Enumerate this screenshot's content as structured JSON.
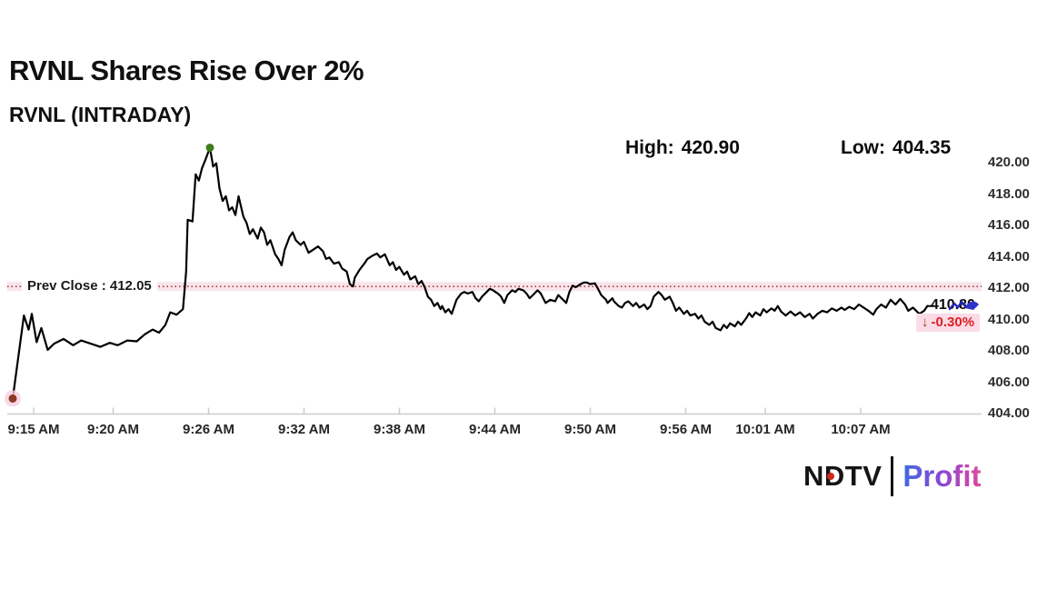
{
  "header": {
    "title": "RVNL Shares Rise Over 2%",
    "subtitle": "RVNL (INTRADAY)"
  },
  "chart_data": {
    "type": "line",
    "title": "RVNL (INTRADAY)",
    "legend": [],
    "grid": "off",
    "x_axis": {
      "tick_labels": [
        "9:15 AM",
        "9:20 AM",
        "9:26 AM",
        "9:32 AM",
        "9:38 AM",
        "9:44 AM",
        "9:50 AM",
        "9:56 AM",
        "10:01 AM",
        "10:07 AM"
      ],
      "tick_minutes": [
        0,
        5,
        11,
        17,
        23,
        29,
        35,
        41,
        46,
        52
      ]
    },
    "y_axis": {
      "tick_values": [
        420,
        418,
        416,
        414,
        412,
        410,
        408,
        406,
        404
      ],
      "tick_labels": [
        "420.00",
        "418.00",
        "416.00",
        "414.00",
        "412.00",
        "410.00",
        "408.00",
        "406.00",
        "404.00"
      ],
      "range": [
        403.7,
        421.3
      ]
    },
    "prev_close": {
      "label": "Prev Close : 412.05",
      "value": 412.05
    },
    "high": {
      "label": "High:",
      "value": "420.90",
      "marker_minute": 12.4
    },
    "low": {
      "label": "Low:",
      "value": "404.35"
    },
    "last": {
      "price": "410.80",
      "arrow": "↓",
      "change": "-0.30%",
      "direction": "down"
    },
    "series": [
      {
        "name": "RVNL",
        "points": [
          [
            0,
            404.9
          ],
          [
            0.7,
            410.2
          ],
          [
            1.0,
            409.3
          ],
          [
            1.2,
            410.3
          ],
          [
            1.5,
            408.5
          ],
          [
            1.8,
            409.4
          ],
          [
            2.2,
            408.0
          ],
          [
            2.6,
            408.4
          ],
          [
            3.2,
            408.7
          ],
          [
            3.8,
            408.3
          ],
          [
            4.3,
            408.6
          ],
          [
            4.9,
            408.4
          ],
          [
            5.5,
            408.2
          ],
          [
            6.1,
            408.45
          ],
          [
            6.6,
            408.3
          ],
          [
            7.2,
            408.6
          ],
          [
            7.8,
            408.55
          ],
          [
            8.3,
            409.0
          ],
          [
            8.8,
            409.3
          ],
          [
            9.2,
            409.1
          ],
          [
            9.6,
            409.6
          ],
          [
            9.9,
            410.4
          ],
          [
            10.3,
            410.25
          ],
          [
            10.7,
            410.6
          ],
          [
            10.9,
            413.0
          ],
          [
            11.0,
            416.3
          ],
          [
            11.3,
            416.2
          ],
          [
            11.5,
            419.2
          ],
          [
            11.7,
            418.8
          ],
          [
            11.9,
            419.6
          ],
          [
            12.1,
            420.1
          ],
          [
            12.4,
            420.9
          ],
          [
            12.6,
            419.7
          ],
          [
            12.8,
            419.9
          ],
          [
            13.0,
            418.3
          ],
          [
            13.2,
            417.5
          ],
          [
            13.4,
            417.8
          ],
          [
            13.6,
            416.9
          ],
          [
            13.8,
            417.1
          ],
          [
            14.0,
            416.6
          ],
          [
            14.2,
            417.8
          ],
          [
            14.5,
            416.5
          ],
          [
            14.7,
            416.1
          ],
          [
            14.9,
            415.4
          ],
          [
            15.1,
            415.7
          ],
          [
            15.4,
            415.1
          ],
          [
            15.6,
            415.8
          ],
          [
            15.8,
            415.5
          ],
          [
            16.0,
            414.7
          ],
          [
            16.2,
            415.0
          ],
          [
            16.5,
            414.1
          ],
          [
            16.7,
            413.8
          ],
          [
            16.9,
            413.4
          ],
          [
            17.1,
            414.4
          ],
          [
            17.4,
            415.2
          ],
          [
            17.6,
            415.5
          ],
          [
            17.8,
            415.0
          ],
          [
            18.1,
            414.7
          ],
          [
            18.3,
            414.9
          ],
          [
            18.6,
            414.2
          ],
          [
            18.9,
            414.4
          ],
          [
            19.2,
            414.6
          ],
          [
            19.5,
            414.3
          ],
          [
            19.7,
            413.8
          ],
          [
            19.9,
            413.9
          ],
          [
            20.2,
            413.5
          ],
          [
            20.5,
            413.6
          ],
          [
            20.7,
            413.2
          ],
          [
            21.0,
            413.0
          ],
          [
            21.2,
            412.2
          ],
          [
            21.4,
            412.05
          ],
          [
            21.5,
            412.6
          ],
          [
            21.8,
            413.1
          ],
          [
            22.1,
            413.5
          ],
          [
            22.3,
            413.8
          ],
          [
            22.6,
            414.0
          ],
          [
            22.9,
            414.15
          ],
          [
            23.1,
            413.9
          ],
          [
            23.4,
            414.1
          ],
          [
            23.7,
            413.4
          ],
          [
            23.9,
            413.6
          ],
          [
            24.1,
            413.1
          ],
          [
            24.3,
            413.3
          ],
          [
            24.6,
            412.8
          ],
          [
            24.8,
            413.0
          ],
          [
            25.0,
            412.5
          ],
          [
            25.3,
            412.7
          ],
          [
            25.5,
            412.2
          ],
          [
            25.7,
            412.4
          ],
          [
            25.9,
            412.0
          ],
          [
            26.1,
            411.4
          ],
          [
            26.3,
            411.2
          ],
          [
            26.5,
            410.8
          ],
          [
            26.7,
            411.0
          ],
          [
            26.9,
            410.6
          ],
          [
            27.0,
            410.8
          ],
          [
            27.2,
            410.4
          ],
          [
            27.4,
            410.6
          ],
          [
            27.6,
            410.3
          ],
          [
            27.8,
            410.9
          ],
          [
            27.9,
            411.2
          ],
          [
            28.2,
            411.6
          ],
          [
            28.4,
            411.7
          ],
          [
            28.6,
            411.6
          ],
          [
            28.9,
            411.7
          ],
          [
            29.1,
            411.3
          ],
          [
            29.3,
            411.1
          ],
          [
            29.5,
            411.4
          ],
          [
            29.8,
            411.7
          ],
          [
            30.0,
            411.9
          ],
          [
            30.2,
            411.8
          ],
          [
            30.5,
            411.6
          ],
          [
            30.7,
            411.4
          ],
          [
            30.9,
            411.0
          ],
          [
            31.1,
            411.5
          ],
          [
            31.4,
            411.8
          ],
          [
            31.6,
            411.7
          ],
          [
            31.8,
            411.9
          ],
          [
            32.1,
            411.8
          ],
          [
            32.3,
            411.6
          ],
          [
            32.5,
            411.3
          ],
          [
            32.7,
            411.5
          ],
          [
            33.0,
            411.8
          ],
          [
            33.2,
            411.6
          ],
          [
            33.5,
            411.0
          ],
          [
            33.8,
            411.2
          ],
          [
            34.1,
            411.1
          ],
          [
            34.3,
            411.5
          ],
          [
            34.6,
            411.2
          ],
          [
            34.8,
            411.0
          ],
          [
            35.0,
            411.7
          ],
          [
            35.2,
            412.1
          ],
          [
            35.4,
            412.0
          ],
          [
            35.7,
            412.2
          ],
          [
            35.9,
            412.3
          ],
          [
            36.1,
            412.3
          ],
          [
            36.3,
            412.2
          ],
          [
            36.6,
            412.25
          ],
          [
            36.8,
            411.9
          ],
          [
            37.0,
            411.5
          ],
          [
            37.3,
            411.2
          ],
          [
            37.4,
            411.0
          ],
          [
            37.7,
            411.3
          ],
          [
            37.8,
            411.1
          ],
          [
            38.1,
            410.8
          ],
          [
            38.3,
            410.7
          ],
          [
            38.5,
            411.0
          ],
          [
            38.7,
            411.1
          ],
          [
            39.0,
            410.8
          ],
          [
            39.2,
            411.0
          ],
          [
            39.4,
            410.7
          ],
          [
            39.7,
            410.9
          ],
          [
            39.9,
            410.6
          ],
          [
            40.1,
            410.8
          ],
          [
            40.3,
            411.4
          ],
          [
            40.6,
            411.7
          ],
          [
            40.8,
            411.5
          ],
          [
            41.0,
            411.2
          ],
          [
            41.3,
            411.4
          ],
          [
            41.5,
            411.0
          ],
          [
            41.7,
            410.5
          ],
          [
            41.9,
            410.7
          ],
          [
            42.2,
            410.3
          ],
          [
            42.4,
            410.5
          ],
          [
            42.6,
            410.2
          ],
          [
            42.9,
            410.3
          ],
          [
            43.1,
            410.0
          ],
          [
            43.3,
            410.2
          ],
          [
            43.5,
            409.8
          ],
          [
            43.8,
            409.6
          ],
          [
            44.0,
            409.8
          ],
          [
            44.2,
            409.4
          ],
          [
            44.5,
            409.25
          ],
          [
            44.7,
            409.6
          ],
          [
            44.9,
            409.4
          ],
          [
            45.1,
            409.7
          ],
          [
            45.4,
            409.5
          ],
          [
            45.6,
            409.8
          ],
          [
            45.8,
            409.6
          ],
          [
            46.1,
            410.0
          ],
          [
            46.3,
            410.35
          ],
          [
            46.5,
            410.1
          ],
          [
            46.7,
            410.4
          ],
          [
            47.0,
            410.2
          ],
          [
            47.2,
            410.6
          ],
          [
            47.4,
            410.4
          ],
          [
            47.7,
            410.65
          ],
          [
            47.9,
            410.5
          ],
          [
            48.1,
            410.8
          ],
          [
            48.3,
            410.45
          ],
          [
            48.6,
            410.2
          ],
          [
            48.9,
            410.45
          ],
          [
            49.2,
            410.2
          ],
          [
            49.5,
            410.4
          ],
          [
            49.8,
            410.1
          ],
          [
            50.1,
            410.3
          ],
          [
            50.3,
            410.0
          ],
          [
            50.6,
            410.3
          ],
          [
            50.9,
            410.5
          ],
          [
            51.2,
            410.4
          ],
          [
            51.5,
            410.65
          ],
          [
            51.8,
            410.5
          ],
          [
            52.1,
            410.7
          ],
          [
            52.3,
            410.55
          ],
          [
            52.6,
            410.75
          ],
          [
            52.9,
            410.6
          ],
          [
            53.2,
            410.9
          ],
          [
            53.5,
            410.7
          ],
          [
            53.8,
            410.5
          ],
          [
            54.1,
            410.25
          ],
          [
            54.3,
            410.6
          ],
          [
            54.6,
            410.9
          ],
          [
            54.9,
            410.7
          ],
          [
            55.2,
            411.2
          ],
          [
            55.5,
            410.9
          ],
          [
            55.8,
            411.25
          ],
          [
            56.1,
            410.9
          ],
          [
            56.3,
            410.5
          ],
          [
            56.6,
            410.7
          ],
          [
            57.0,
            410.3
          ],
          [
            57.3,
            410.5
          ],
          [
            57.5,
            410.8
          ]
        ]
      }
    ]
  },
  "footer": {
    "brand_left": "NDTV",
    "brand_right": "Profit"
  },
  "colors": {
    "line": "#000000",
    "prev_close_line": "#b03a2e",
    "prev_close_band": "#f3cede",
    "start_dot": "#8c3a23",
    "start_dot_halo": "#f6cfe0",
    "high_dot": "#3f7d1f",
    "axis_line": "#cdcdcd",
    "change_text": "#e01f1f",
    "change_arrow": "#a63a10",
    "change_bg": "#fadbe7",
    "brand_dot": "#cc2a1e",
    "profit_gradient": [
      "#3d6be0",
      "#8a46d8",
      "#e0489a"
    ],
    "sparkline_icon": "#252bb5"
  }
}
